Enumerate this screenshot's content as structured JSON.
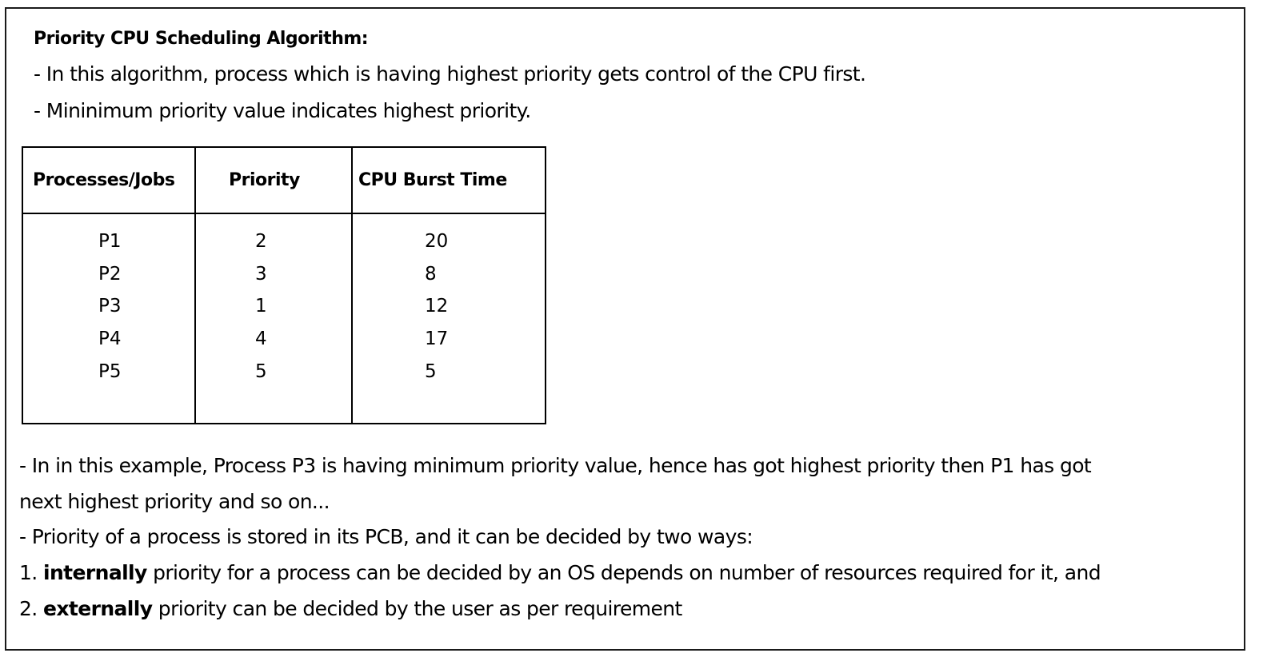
{
  "document": {
    "title": "Priority CPU Scheduling Algorithm:",
    "intro": [
      "- In this algorithm, process which is having highest priority gets control of the CPU first.",
      "- Mininimum priority value indicates highest priority."
    ],
    "table": {
      "headers": [
        "Processes/Jobs",
        "Priority",
        "CPU Burst Time"
      ],
      "rows": [
        [
          "P1",
          "2",
          "20"
        ],
        [
          "P2",
          "3",
          "8"
        ],
        [
          "P3",
          "1",
          "12"
        ],
        [
          "P4",
          "4",
          "17"
        ],
        [
          "P5",
          "5",
          "5"
        ]
      ]
    },
    "explanation": {
      "line1": "- In in this example, Process P3 is having minimum priority value, hence has got highest priority then P1 has got",
      "line2": "next highest priority and so on...",
      "line3": "- Priority of a process is stored in its PCB, and it can be decided by two ways:",
      "item1_number": "1.",
      "item1_keyword": "internally",
      "item1_text": "priority for a process can be decided by an OS depends on number of resources required for it, and",
      "item2_number": "2.",
      "item2_keyword": "externally",
      "item2_text": "priority can be decided by the user as per requirement"
    }
  }
}
